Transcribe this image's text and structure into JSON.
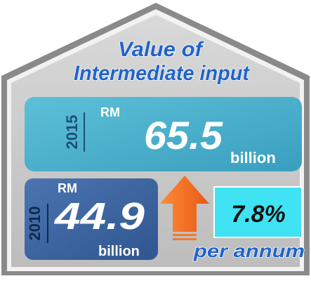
{
  "title": {
    "line1": "Value of",
    "line2": "Intermediate input"
  },
  "current": {
    "year": "2015",
    "currency": "RM",
    "amount": "65.5",
    "unit": "billion"
  },
  "previous": {
    "year": "2010",
    "currency": "RM",
    "amount": "44.9",
    "unit": "billion"
  },
  "growth": {
    "rate": "7.8%",
    "period": "per annum"
  }
}
